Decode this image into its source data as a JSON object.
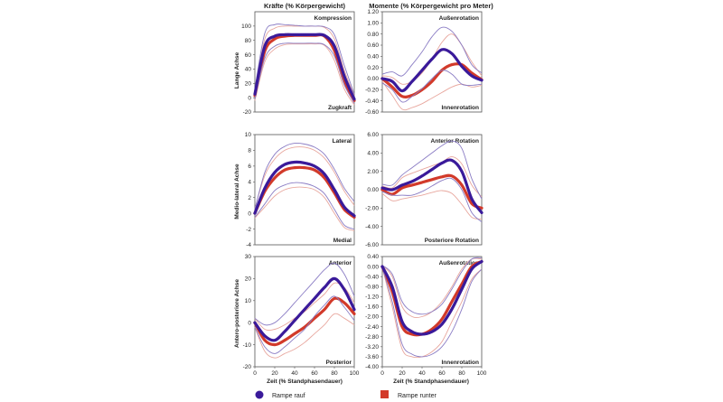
{
  "figure": {
    "column_titles": [
      "Kräfte (% Körpergewicht)",
      "Momente (% Körpergewicht pro Meter)"
    ],
    "row_labels": [
      "Lange Achse",
      "Medio-lateral Achse",
      "Antero-posteriore Achse"
    ],
    "xlabel": "Zeit (% Standphasendauer)",
    "legend": [
      {
        "label": "Rampe rauf",
        "color": "#3a1a9a",
        "marker": "circle"
      },
      {
        "label": "Rampe runter",
        "color": "#d23a2a",
        "marker": "square"
      }
    ],
    "colors": {
      "rauf": "#3a1a9a",
      "runter": "#d23a2a",
      "rauf_band": "#8a7cc4",
      "runter_band": "#e8a79e"
    }
  },
  "chart_data": [
    {
      "type": "line",
      "x": [
        0,
        10,
        20,
        30,
        40,
        50,
        60,
        70,
        80,
        90,
        100
      ],
      "xlim": [
        0,
        100
      ],
      "xticks": [
        "0",
        "20",
        "40",
        "60",
        "80",
        "100"
      ],
      "ylim": [
        -20,
        120
      ],
      "yticks": [
        "-20",
        "0",
        "20",
        "40",
        "60",
        "80",
        "100"
      ],
      "top_label": "Kompression",
      "bottom_label": "Zugkraft",
      "series": [
        {
          "name": "Rampe rauf",
          "values": [
            5,
            72,
            86,
            88,
            88,
            88,
            88,
            87,
            72,
            30,
            -2
          ],
          "upper": [
            12,
            90,
            102,
            102,
            101,
            100,
            100,
            99,
            88,
            45,
            5
          ],
          "lower": [
            -2,
            55,
            72,
            76,
            76,
            76,
            76,
            74,
            58,
            18,
            -8
          ]
        },
        {
          "name": "Rampe runter",
          "values": [
            3,
            65,
            82,
            86,
            87,
            87,
            87,
            86,
            66,
            22,
            -4
          ],
          "upper": [
            10,
            82,
            97,
            100,
            100,
            100,
            100,
            98,
            82,
            38,
            3
          ],
          "lower": [
            -4,
            50,
            68,
            74,
            75,
            75,
            75,
            73,
            52,
            12,
            -10
          ]
        }
      ]
    },
    {
      "type": "line",
      "x": [
        0,
        10,
        20,
        30,
        40,
        50,
        60,
        70,
        80,
        90,
        100
      ],
      "xlim": [
        0,
        100
      ],
      "xticks": [
        "0",
        "20",
        "40",
        "60",
        "80",
        "100"
      ],
      "ylim": [
        -0.6,
        1.2
      ],
      "yticks": [
        "-0.60",
        "-0.40",
        "-0.20",
        "0.00",
        "0.20",
        "0.40",
        "0.60",
        "0.80",
        "1.00",
        "1.20"
      ],
      "top_label": "Außenrotation",
      "bottom_label": "Innenrotation",
      "series": [
        {
          "name": "Rampe rauf",
          "values": [
            0.0,
            -0.05,
            -0.22,
            -0.05,
            0.15,
            0.35,
            0.52,
            0.45,
            0.22,
            0.05,
            -0.03
          ],
          "upper": [
            0.08,
            0.12,
            0.05,
            0.25,
            0.48,
            0.75,
            0.92,
            0.85,
            0.6,
            0.25,
            0.1
          ],
          "lower": [
            -0.08,
            -0.2,
            -0.42,
            -0.32,
            -0.18,
            0.0,
            0.15,
            0.08,
            -0.1,
            -0.12,
            -0.1
          ]
        },
        {
          "name": "Rampe runter",
          "values": [
            0.0,
            -0.15,
            -0.32,
            -0.3,
            -0.2,
            -0.05,
            0.15,
            0.25,
            0.25,
            0.1,
            -0.02
          ],
          "upper": [
            0.05,
            0.02,
            -0.1,
            -0.05,
            0.1,
            0.35,
            0.65,
            0.8,
            0.6,
            0.3,
            0.05
          ],
          "lower": [
            -0.05,
            -0.3,
            -0.55,
            -0.52,
            -0.45,
            -0.35,
            -0.25,
            -0.15,
            -0.1,
            -0.15,
            -0.12
          ]
        }
      ]
    },
    {
      "type": "line",
      "x": [
        0,
        10,
        20,
        30,
        40,
        50,
        60,
        70,
        80,
        90,
        100
      ],
      "xlim": [
        0,
        100
      ],
      "xticks": [
        "0",
        "20",
        "40",
        "60",
        "80",
        "100"
      ],
      "ylim": [
        -4,
        10
      ],
      "yticks": [
        "-4",
        "-2",
        "0",
        "2",
        "4",
        "6",
        "8",
        "10"
      ],
      "top_label": "Lateral",
      "bottom_label": "Medial",
      "series": [
        {
          "name": "Rampe rauf",
          "values": [
            0,
            3.2,
            5.2,
            6.2,
            6.5,
            6.4,
            6.0,
            5.0,
            3.0,
            0.8,
            -0.3
          ],
          "upper": [
            0.5,
            5.2,
            7.5,
            8.5,
            8.9,
            8.8,
            8.4,
            7.5,
            5.6,
            3.2,
            1.5
          ],
          "lower": [
            -0.5,
            1.2,
            2.9,
            3.6,
            3.9,
            3.8,
            3.4,
            2.5,
            0.5,
            -1.5,
            -2.0
          ]
        },
        {
          "name": "Rampe runter",
          "values": [
            0,
            2.8,
            4.5,
            5.5,
            5.8,
            5.8,
            5.5,
            4.5,
            2.6,
            0.5,
            -0.5
          ],
          "upper": [
            0.6,
            4.8,
            6.9,
            8.0,
            8.4,
            8.4,
            8.0,
            7.0,
            5.2,
            2.8,
            1.0
          ],
          "lower": [
            -0.6,
            0.8,
            2.2,
            3.0,
            3.3,
            3.3,
            3.0,
            2.0,
            0.0,
            -1.8,
            -2.2
          ]
        }
      ]
    },
    {
      "type": "line",
      "x": [
        0,
        10,
        20,
        30,
        40,
        50,
        60,
        70,
        80,
        90,
        100
      ],
      "xlim": [
        0,
        100
      ],
      "xticks": [
        "0",
        "20",
        "40",
        "60",
        "80",
        "100"
      ],
      "ylim": [
        -6,
        6
      ],
      "yticks": [
        "-6.00",
        "-4.00",
        "-2.00",
        "0.00",
        "2.00",
        "4.00",
        "6.00"
      ],
      "top_label": "Anterior Rotation",
      "bottom_label": "Posteriore Rotation",
      "series": [
        {
          "name": "Rampe rauf",
          "values": [
            0.2,
            0.0,
            0.5,
            0.9,
            1.5,
            2.2,
            2.9,
            3.2,
            2.0,
            -1.0,
            -2.5
          ],
          "upper": [
            0.6,
            0.5,
            1.6,
            2.4,
            3.2,
            4.0,
            4.8,
            5.3,
            4.5,
            1.2,
            -1.0
          ],
          "lower": [
            -0.2,
            -0.6,
            -0.6,
            -0.6,
            -0.2,
            0.4,
            1.0,
            1.2,
            0.0,
            -2.5,
            -3.5
          ]
        },
        {
          "name": "Rampe runter",
          "values": [
            0.0,
            -0.5,
            0.2,
            0.5,
            0.8,
            1.1,
            1.4,
            1.5,
            0.5,
            -1.5,
            -2.0
          ],
          "upper": [
            0.4,
            0.2,
            1.3,
            1.8,
            2.2,
            2.6,
            3.0,
            3.6,
            2.8,
            0.5,
            -0.8
          ],
          "lower": [
            -0.4,
            -1.2,
            -1.0,
            -0.8,
            -0.6,
            -0.3,
            -0.1,
            -0.4,
            -1.6,
            -3.0,
            -3.2
          ]
        }
      ]
    },
    {
      "type": "line",
      "x": [
        0,
        10,
        20,
        30,
        40,
        50,
        60,
        70,
        80,
        90,
        100
      ],
      "xlim": [
        0,
        100
      ],
      "xticks": [
        "0",
        "20",
        "40",
        "60",
        "80",
        "100"
      ],
      "ylim": [
        -20,
        30
      ],
      "yticks": [
        "-20",
        "-10",
        "0",
        "10",
        "20",
        "30"
      ],
      "top_label": "Anterior",
      "bottom_label": "Posterior",
      "series": [
        {
          "name": "Rampe rauf",
          "values": [
            0,
            -6,
            -8,
            -4,
            1,
            6,
            11,
            16,
            20,
            15,
            6
          ],
          "upper": [
            2,
            -1,
            0,
            4,
            9,
            14,
            19,
            24,
            27,
            22,
            12
          ],
          "lower": [
            -2,
            -11,
            -14,
            -11,
            -7,
            -3,
            3,
            8,
            12,
            7,
            1
          ]
        },
        {
          "name": "Rampe runter",
          "values": [
            0,
            -8,
            -10,
            -8,
            -5,
            -2,
            2,
            6,
            11,
            9,
            4
          ],
          "upper": [
            2,
            -3,
            -3,
            -1,
            2,
            5,
            9,
            13,
            18,
            16,
            9
          ],
          "lower": [
            -2,
            -13,
            -16,
            -14,
            -12,
            -9,
            -5,
            -1,
            4,
            2,
            -1
          ]
        }
      ]
    },
    {
      "type": "line",
      "x": [
        0,
        10,
        20,
        30,
        40,
        50,
        60,
        70,
        80,
        90,
        100
      ],
      "xlim": [
        0,
        100
      ],
      "xticks": [
        "0",
        "20",
        "40",
        "60",
        "80",
        "100"
      ],
      "ylim": [
        -4,
        0.4
      ],
      "yticks": [
        "-4.00",
        "-3.60",
        "-3.20",
        "-2.80",
        "-2.40",
        "-2.00",
        "-1.60",
        "-1.20",
        "-0.80",
        "-0.40",
        "0.00",
        "0.40"
      ],
      "top_label": "Außenrotation",
      "bottom_label": "Innenrotation",
      "series": [
        {
          "name": "Rampe rauf",
          "values": [
            0,
            -0.8,
            -2.2,
            -2.6,
            -2.7,
            -2.6,
            -2.3,
            -1.7,
            -0.9,
            -0.1,
            0.2
          ],
          "upper": [
            0.05,
            -0.3,
            -1.4,
            -1.8,
            -1.9,
            -1.8,
            -1.5,
            -0.9,
            -0.2,
            0.3,
            0.35
          ],
          "lower": [
            -0.05,
            -1.4,
            -3.1,
            -3.5,
            -3.6,
            -3.5,
            -3.2,
            -2.6,
            -1.7,
            -0.6,
            -0.1
          ]
        },
        {
          "name": "Rampe runter",
          "values": [
            0,
            -1.0,
            -2.4,
            -2.7,
            -2.7,
            -2.5,
            -2.1,
            -1.4,
            -0.7,
            0.0,
            0.2
          ],
          "upper": [
            0.05,
            -0.4,
            -1.6,
            -2.0,
            -2.0,
            -1.8,
            -1.4,
            -0.8,
            -0.1,
            0.3,
            0.3
          ],
          "lower": [
            -0.05,
            -1.6,
            -3.3,
            -3.6,
            -3.6,
            -3.4,
            -3.0,
            -2.2,
            -1.4,
            -0.5,
            -0.1
          ]
        }
      ]
    }
  ]
}
